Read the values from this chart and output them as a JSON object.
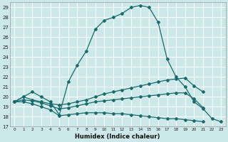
{
  "xlabel": "Humidex (Indice chaleur)",
  "bg_color": "#cce8e8",
  "grid_color": "#b0d8d8",
  "line_color": "#1a6b6b",
  "xlim": [
    -0.5,
    23.5
  ],
  "ylim": [
    17,
    29.5
  ],
  "yticks": [
    17,
    18,
    19,
    20,
    21,
    22,
    23,
    24,
    25,
    26,
    27,
    28,
    29
  ],
  "xticks": [
    0,
    1,
    2,
    3,
    4,
    5,
    6,
    7,
    8,
    9,
    10,
    11,
    12,
    13,
    14,
    15,
    16,
    17,
    18,
    19,
    20,
    21,
    22,
    23
  ],
  "series": [
    {
      "x": [
        0,
        1,
        2,
        3,
        4,
        5,
        6,
        7,
        8,
        9,
        10,
        11,
        12,
        13,
        14,
        15,
        16,
        17,
        18,
        19,
        20,
        21,
        22,
        23
      ],
      "y": [
        19.5,
        20.0,
        null,
        null,
        null,
        null,
        null,
        null,
        null,
        null,
        null,
        null,
        null,
        null,
        null,
        null,
        null,
        null,
        null,
        null,
        null,
        null,
        null,
        null
      ]
    },
    {
      "x": [
        0,
        1,
        2,
        3,
        4,
        5,
        6,
        7,
        8,
        9,
        10,
        11,
        12,
        13,
        14,
        15,
        16,
        17,
        18,
        19,
        20,
        21,
        22,
        23
      ],
      "y": [
        19.5,
        20.0,
        20.5,
        20.0,
        19.5,
        18.2,
        21.5,
        23.2,
        24.6,
        26.8,
        27.7,
        28.0,
        28.4,
        29.0,
        29.2,
        29.0,
        27.5,
        23.8,
        22.0,
        21.0,
        19.5,
        18.8,
        17.8,
        17.5
      ]
    },
    {
      "x": [
        0,
        1,
        2,
        3,
        4,
        5,
        6,
        7,
        8,
        9,
        10,
        11,
        12,
        13,
        14,
        15,
        16,
        17,
        18,
        19,
        20,
        21,
        22,
        23
      ],
      "y": [
        19.5,
        20.0,
        19.7,
        19.5,
        19.3,
        19.2,
        19.3,
        19.5,
        19.7,
        20.0,
        20.3,
        20.5,
        20.7,
        20.9,
        21.1,
        21.3,
        21.5,
        21.7,
        21.8,
        21.9,
        21.1,
        20.5,
        null,
        null
      ]
    },
    {
      "x": [
        0,
        1,
        2,
        3,
        4,
        5,
        6,
        7,
        8,
        9,
        10,
        11,
        12,
        13,
        14,
        15,
        16,
        17,
        18,
        19,
        20,
        21,
        22,
        23
      ],
      "y": [
        19.5,
        19.7,
        19.6,
        19.4,
        19.1,
        18.8,
        18.9,
        19.1,
        19.3,
        19.5,
        19.6,
        19.7,
        19.8,
        19.9,
        20.0,
        20.1,
        20.2,
        20.3,
        20.4,
        20.4,
        19.8,
        18.9,
        null,
        null
      ]
    },
    {
      "x": [
        0,
        1,
        2,
        3,
        4,
        5,
        6,
        7,
        8,
        9,
        10,
        11,
        12,
        13,
        14,
        15,
        16,
        17,
        18,
        19,
        20,
        21,
        22,
        23
      ],
      "y": [
        19.5,
        19.5,
        19.3,
        19.0,
        18.7,
        18.1,
        18.2,
        18.3,
        18.4,
        18.4,
        18.4,
        18.3,
        18.3,
        18.2,
        18.1,
        18.0,
        17.9,
        17.8,
        17.8,
        17.7,
        17.6,
        17.5,
        null,
        null
      ]
    }
  ]
}
